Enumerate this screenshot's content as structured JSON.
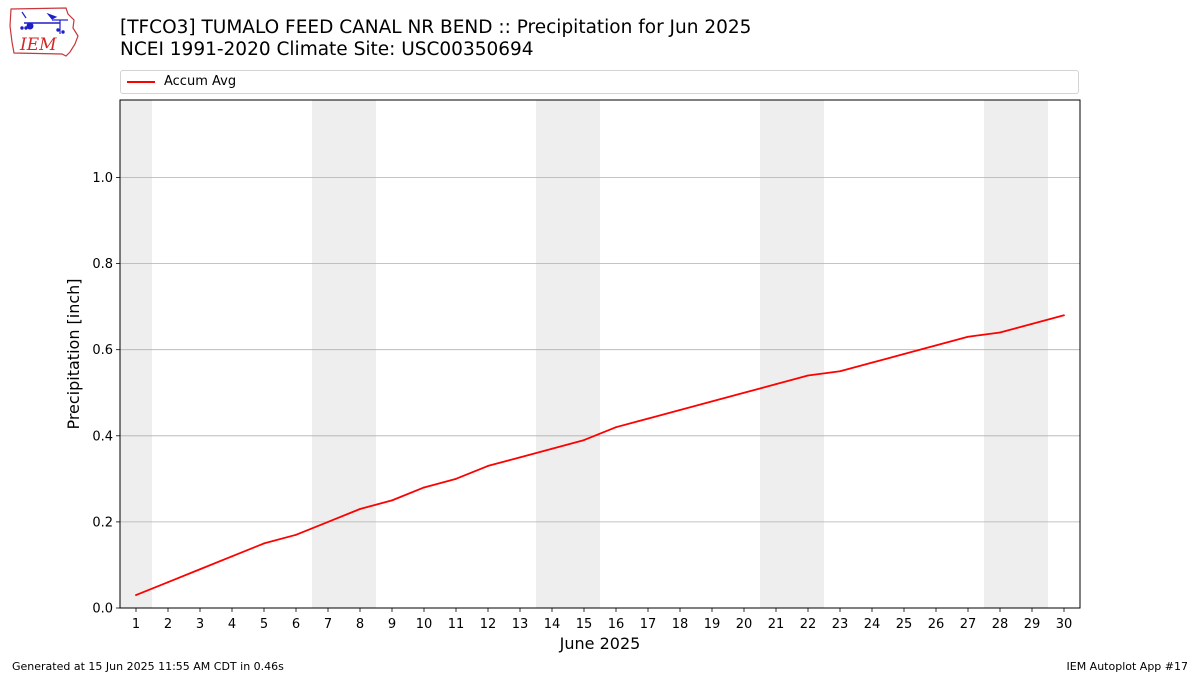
{
  "header": {
    "title_line1": "[TFCO3] TUMALO FEED CANAL NR BEND :: Precipitation for Jun 2025",
    "title_line2": "NCEI 1991-2020 Climate Site: USC00350694"
  },
  "logo": {
    "text": "IEM",
    "icon": "iem-iowa-weather-logo",
    "outline_color": "#c8373c",
    "text_color": "#d62728",
    "symbol_color": "#1f1fc8"
  },
  "footer": {
    "left": "Generated at 15 Jun 2025 11:55 AM CDT in 0.46s",
    "right": "IEM Autoplot App #17"
  },
  "chart_data": {
    "type": "line",
    "title": "",
    "xlabel": "June 2025",
    "ylabel": "Precipitation [inch]",
    "x": [
      1,
      2,
      3,
      4,
      5,
      6,
      7,
      8,
      9,
      10,
      11,
      12,
      13,
      14,
      15,
      16,
      17,
      18,
      19,
      20,
      21,
      22,
      23,
      24,
      25,
      26,
      27,
      28,
      29,
      30
    ],
    "xticks": [
      "1",
      "2",
      "3",
      "4",
      "5",
      "6",
      "7",
      "8",
      "9",
      "10",
      "11",
      "12",
      "13",
      "14",
      "15",
      "16",
      "17",
      "18",
      "19",
      "20",
      "21",
      "22",
      "23",
      "24",
      "25",
      "26",
      "27",
      "28",
      "29",
      "30"
    ],
    "xlim": [
      0.5,
      30.5
    ],
    "ylim": [
      0,
      1.18
    ],
    "yticks": [
      "0.0",
      "0.2",
      "0.4",
      "0.6",
      "0.8",
      "1.0"
    ],
    "grid": "horizontal",
    "legend_location": "top, above plot",
    "weekend_shading": [
      [
        0.5,
        1.5
      ],
      [
        6.5,
        8.5
      ],
      [
        13.5,
        15.5
      ],
      [
        20.5,
        22.5
      ],
      [
        27.5,
        29.5
      ]
    ],
    "shading_color": "#eeeeee",
    "series": [
      {
        "name": "Accum Avg",
        "color": "#ff0000",
        "values": [
          0.03,
          0.06,
          0.09,
          0.12,
          0.15,
          0.17,
          0.2,
          0.23,
          0.25,
          0.28,
          0.3,
          0.33,
          0.35,
          0.37,
          0.39,
          0.42,
          0.44,
          0.46,
          0.48,
          0.5,
          0.52,
          0.54,
          0.55,
          0.57,
          0.59,
          0.61,
          0.63,
          0.64,
          0.66,
          0.68
        ]
      }
    ]
  }
}
